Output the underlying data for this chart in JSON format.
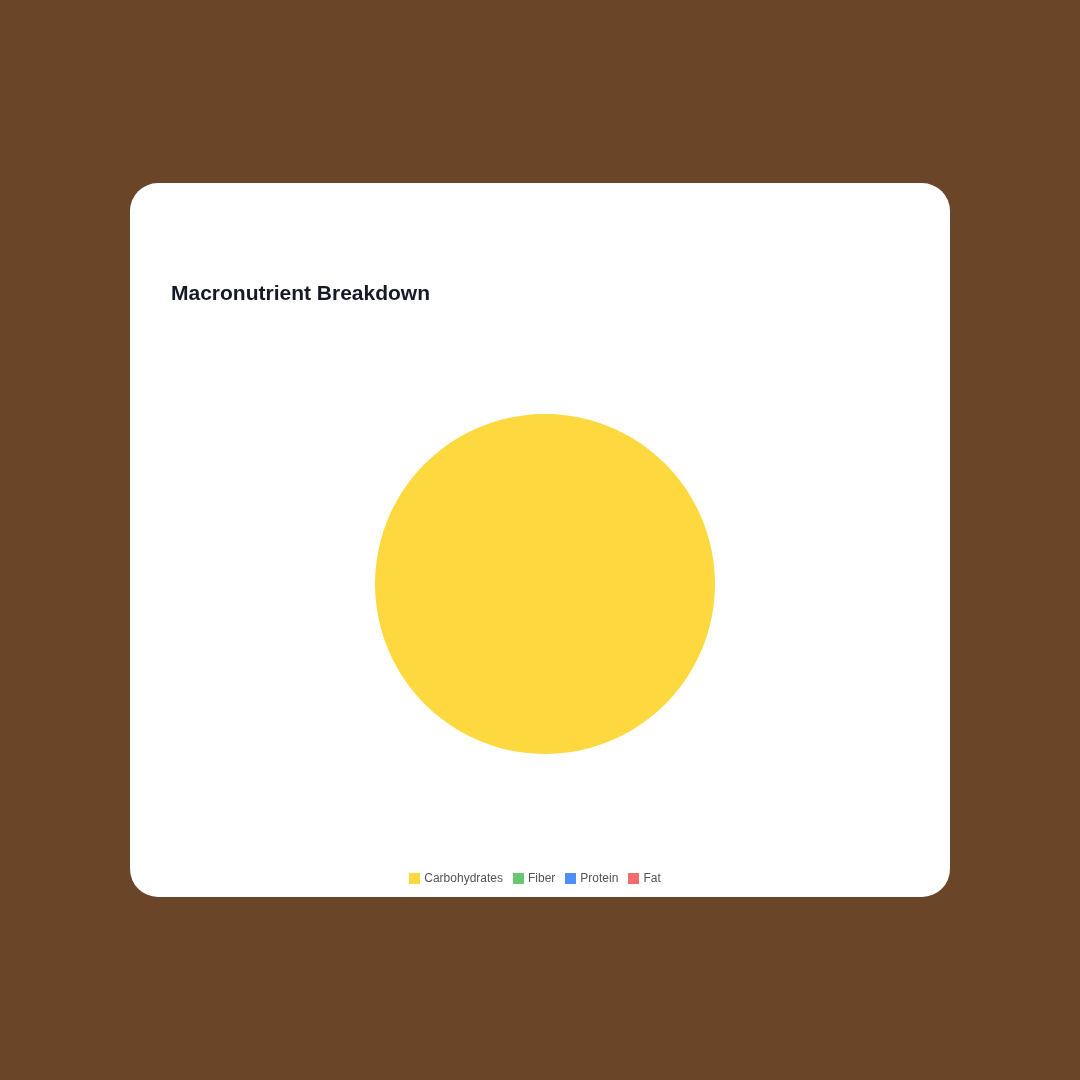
{
  "chart_data": {
    "type": "pie",
    "title": "Macronutrient Breakdown",
    "categories": [
      "Carbohydrates",
      "Fiber",
      "Protein",
      "Fat"
    ],
    "values": [
      100,
      0,
      0,
      0
    ],
    "colors": [
      "#fdd93f",
      "#6cc56f",
      "#4f8ef6",
      "#f46b6b"
    ],
    "legend": "bottom"
  }
}
